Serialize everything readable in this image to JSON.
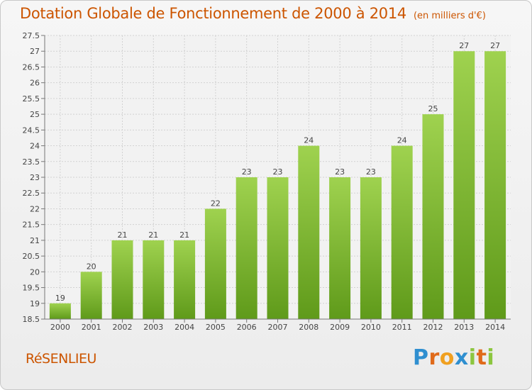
{
  "title": "Dotation Globale de Fonctionnement de 2000 à 2014",
  "unit": "(en milliers d'€)",
  "commune": "RéSENLIEU",
  "logo": {
    "p": "P",
    "r": "r",
    "o": "o",
    "x": "x",
    "i1": "i",
    "t": "t",
    "i2": "i"
  },
  "chart_data": {
    "type": "bar",
    "categories": [
      "2000",
      "2001",
      "2002",
      "2003",
      "2004",
      "2005",
      "2006",
      "2007",
      "2008",
      "2009",
      "2010",
      "2011",
      "2012",
      "2013",
      "2014"
    ],
    "values": [
      19,
      20,
      21,
      21,
      21,
      22,
      23,
      23,
      24,
      23,
      23,
      24,
      25,
      27,
      27
    ],
    "ylim": [
      18.5,
      27.5
    ],
    "yticks": [
      "18.5",
      "19",
      "19.5",
      "20",
      "20.5",
      "21",
      "21.5",
      "22",
      "22.5",
      "23",
      "23.5",
      "24",
      "24.5",
      "25",
      "25.5",
      "26",
      "26.5",
      "27",
      "27.5"
    ],
    "grid": true,
    "bar_color": "#7cb82f"
  }
}
